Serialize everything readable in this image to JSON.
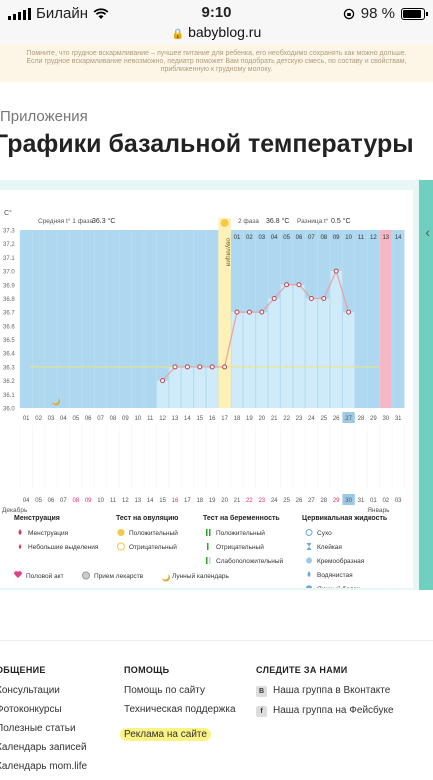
{
  "status": {
    "carrier": "Билайн",
    "time": "9:10",
    "battery": "98 %",
    "url": "babyblog.ru"
  },
  "banner": {
    "text": "Помните, что грудное вскармливание – лучшее питание для ребенка, его необходимо сохранять как можно дольше. Если грудное вскармливание невозможно, педиатр поможет Вам подобрать детскую смесь, по составу и свойствам, приближенную к грудному молоку."
  },
  "page": {
    "breadcrumb": "Приложения",
    "title": "Графики базальной температуры"
  },
  "chart_data": {
    "type": "line",
    "unit_label": "C°",
    "phase1_label": "Средняя t° 1 фаза",
    "phase1_value": "36.3 °C",
    "phase2_label": "2 фаза",
    "phase2_value": "36.8 °C",
    "diff_label": "Разница t°",
    "diff_value": "0.5 °C",
    "ovulation_label": "овуляция",
    "yticks": [
      "37.3",
      "37.2",
      "37.1",
      "37.0",
      "36.9",
      "36.8",
      "36.7",
      "36.6",
      "36.5",
      "36.4",
      "36.3",
      "36.2",
      "36.1",
      "36.0"
    ],
    "ylim": [
      36.0,
      37.3
    ],
    "baseline": 36.3,
    "days": [
      "01",
      "02",
      "03",
      "04",
      "05",
      "06",
      "07",
      "08",
      "09",
      "10",
      "11",
      "12",
      "13",
      "14",
      "15",
      "16",
      "17",
      "18",
      "19",
      "20",
      "21",
      "22",
      "23",
      "24",
      "25",
      "26",
      "27",
      "28",
      "29",
      "30",
      "31"
    ],
    "top_labels": [
      "01",
      "02",
      "03",
      "04",
      "05",
      "06",
      "07",
      "08",
      "09",
      "10",
      "11",
      "12",
      "13",
      "14"
    ],
    "values": [
      null,
      null,
      null,
      null,
      null,
      null,
      null,
      null,
      null,
      null,
      null,
      36.2,
      36.3,
      36.3,
      36.3,
      36.3,
      36.3,
      36.7,
      36.7,
      36.7,
      36.8,
      36.9,
      36.9,
      36.8,
      36.8,
      37.0,
      36.7,
      null,
      null,
      null,
      null
    ],
    "ovulation_day": "17",
    "highlight_day": "27",
    "pink_day": "30",
    "dates": [
      "04",
      "05",
      "06",
      "07",
      "08",
      "09",
      "10",
      "11",
      "12",
      "13",
      "14",
      "15",
      "16",
      "17",
      "18",
      "19",
      "20",
      "21",
      "22",
      "23",
      "24",
      "25",
      "26",
      "27",
      "28",
      "29",
      "30",
      "31",
      "01",
      "02",
      "03"
    ],
    "red_dates": [
      "08",
      "09",
      "16",
      "22",
      "23",
      "29"
    ],
    "highlight_date": "30",
    "month_left": "Декабрь",
    "month_right": "Январь"
  },
  "legend": {
    "menstruation": {
      "title": "Менструация",
      "items": [
        "Менструация",
        "Небольшие выделения"
      ]
    },
    "ovulation_test": {
      "title": "Тест на овуляцию",
      "items": [
        "Положительный",
        "Отрицательный"
      ]
    },
    "pregnancy_test": {
      "title": "Тест на беременность",
      "items": [
        "Положительный",
        "Отрицательный",
        "Слабоположительный"
      ]
    },
    "cervical": {
      "title": "Цервикальная жидкость",
      "items": [
        "Сухо",
        "Клейкая",
        "Кремообразная",
        "Водянистая",
        "Яичный белок"
      ]
    },
    "bottom": [
      "Половой акт",
      "Прием лекарств",
      "Лунный календарь"
    ]
  },
  "footer": {
    "col1": {
      "title": "ОБЩЕНИЕ",
      "links": [
        "Консультации",
        "Фотоконкурсы",
        "Полезные статьи",
        "Календарь записей",
        "Календарь mom.life"
      ]
    },
    "col2": {
      "title": "ПОМОЩЬ",
      "links": [
        "Помощь по сайту",
        "Техническая поддержка",
        "Реклама на сайте"
      ]
    },
    "col3": {
      "title": "СЛЕДИТЕ ЗА НАМИ",
      "links": [
        "Наша группа в Вконтакте",
        "Наша группа на Фейсбуке"
      ]
    }
  },
  "colors": {
    "chart_bg": "#aed8f0",
    "bar": "#cfebfa",
    "line": "#e8a0a0",
    "point": "#c0424a",
    "ovulation": "#fdf1b5",
    "pink": "#f6b7c4",
    "highlight": "#9cc9e6",
    "accent": "#6fd0c0"
  }
}
